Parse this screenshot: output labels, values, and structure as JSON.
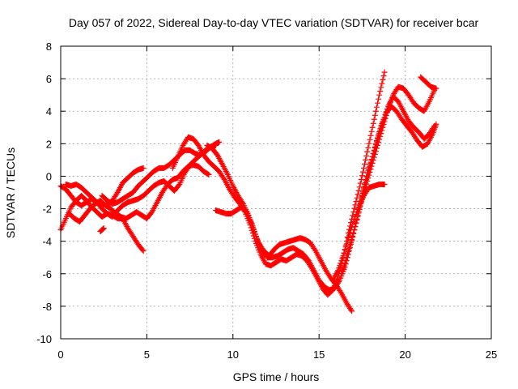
{
  "chart_data": {
    "type": "scatter",
    "title": "Day 057 of 2022, Sidereal Day-to-day VTEC variation (SDTVAR) for receiver bcar",
    "xlabel": "GPS time / hours",
    "ylabel": "SDTVAR / TECUs",
    "xlim": [
      0,
      25
    ],
    "ylim": [
      -10,
      8
    ],
    "xticks": [
      0,
      5,
      10,
      15,
      20,
      25
    ],
    "yticks": [
      -10,
      -8,
      -6,
      -4,
      -2,
      0,
      2,
      4,
      6,
      8
    ],
    "grid": true,
    "marker": "plus",
    "color": "#ff0000",
    "series": [
      {
        "x": [
          0.0,
          0.3,
          0.6,
          0.9,
          1.2,
          1.5,
          1.8,
          2.1,
          2.4,
          2.7,
          3.0,
          3.3,
          3.6,
          3.9,
          4.2,
          4.5,
          4.8
        ],
        "y": [
          -3.3,
          -2.6,
          -1.9,
          -1.5,
          -1.2,
          -1.5,
          -1.9,
          -2.2,
          -2.5,
          -2.3,
          -2.4,
          -2.6,
          -2.6,
          -3.2,
          -3.7,
          -4.2,
          -4.6
        ]
      },
      {
        "x": [
          0.0,
          0.3,
          0.6,
          0.9,
          1.2,
          1.5,
          1.8,
          2.1,
          2.4,
          2.7,
          3.0,
          3.3,
          3.6,
          3.9,
          4.2,
          4.5,
          4.8,
          5.1,
          5.4,
          5.7,
          6.0,
          6.3,
          6.6,
          6.9,
          7.2,
          7.5,
          7.8,
          8.1,
          8.4,
          8.7,
          9.0,
          9.2
        ],
        "y": [
          -0.6,
          -0.8,
          -1.2,
          -1.6,
          -1.8,
          -1.6,
          -1.4,
          -1.6,
          -2.0,
          -2.3,
          -2.5,
          -2.1,
          -1.8,
          -1.6,
          -1.5,
          -1.4,
          -1.2,
          -0.9,
          -0.6,
          -0.4,
          -0.3,
          -0.6,
          -0.9,
          -0.5,
          0.2,
          0.7,
          1.0,
          1.3,
          1.6,
          1.8,
          2.0,
          2.1
        ]
      },
      {
        "x": [
          0.5,
          0.8,
          1.1,
          1.4,
          1.7,
          2.0,
          2.3,
          2.6,
          2.9,
          3.2,
          3.5,
          3.8,
          4.1,
          4.4,
          4.7,
          5.0,
          5.3,
          5.6,
          5.9,
          6.2,
          6.5,
          6.8,
          7.1,
          7.4,
          7.7,
          8.0,
          8.3,
          8.6
        ],
        "y": [
          -2.3,
          -2.6,
          -2.8,
          -2.4,
          -2.0,
          -1.7,
          -1.5,
          -1.8,
          -2.0,
          -2.3,
          -2.5,
          -2.6,
          -2.4,
          -2.2,
          -2.4,
          -2.6,
          -2.2,
          -1.6,
          -1.0,
          -0.5,
          -0.2,
          -0.1,
          0.3,
          0.6,
          0.7,
          0.6,
          0.3,
          0.1
        ]
      },
      {
        "x": [
          0.3,
          0.6,
          0.9,
          1.2,
          1.5,
          1.8,
          2.1,
          2.4,
          2.7,
          3.0,
          3.3,
          3.6,
          3.9,
          4.2,
          4.5,
          4.8
        ],
        "y": [
          -0.5,
          -0.6,
          -0.5,
          -0.7,
          -1.0,
          -1.3,
          -1.6,
          -1.7,
          -1.8,
          -1.5,
          -1.0,
          -0.4,
          -0.1,
          0.2,
          0.4,
          0.5
        ]
      },
      {
        "x": [
          2.4,
          2.7,
          3.0,
          3.3,
          3.6,
          3.9,
          4.2,
          4.5,
          4.8,
          5.1,
          5.4,
          5.7,
          6.0,
          6.3,
          6.6,
          6.9,
          7.2,
          7.5,
          7.8,
          8.1,
          8.4,
          8.7,
          9.0
        ],
        "y": [
          -1.2,
          -1.5,
          -1.7,
          -1.6,
          -1.4,
          -1.2,
          -1.0,
          -0.6,
          -0.3,
          0.0,
          0.3,
          0.5,
          0.5,
          0.7,
          1.0,
          1.3,
          1.6,
          1.6,
          1.4,
          1.3,
          1.5,
          1.8,
          1.9
        ]
      },
      {
        "x": [
          2.3,
          2.5
        ],
        "y": [
          -3.4,
          -3.2
        ]
      },
      {
        "x": [
          6.5,
          6.8,
          7.1,
          7.4,
          7.7,
          8.0,
          8.3,
          8.6,
          8.9,
          9.2,
          9.5,
          9.8,
          10.1,
          10.4,
          10.7,
          11.0,
          11.3,
          11.6,
          11.9,
          12.2,
          12.5,
          12.8,
          13.1,
          13.4,
          13.7,
          14.0,
          14.3,
          14.6,
          14.9,
          15.2,
          15.5,
          15.8,
          16.1,
          16.4,
          16.7,
          17.0,
          17.3,
          17.6,
          17.9,
          18.2,
          18.5,
          18.8
        ],
        "y": [
          0.5,
          1.2,
          1.9,
          2.4,
          2.3,
          1.9,
          1.3,
          0.9,
          0.6,
          0.3,
          -0.2,
          -0.8,
          -1.3,
          -1.7,
          -2.2,
          -3.0,
          -4.0,
          -4.8,
          -5.4,
          -5.5,
          -5.3,
          -5.1,
          -5.2,
          -5.0,
          -4.8,
          -4.9,
          -5.2,
          -5.7,
          -6.3,
          -6.9,
          -7.3,
          -7.0,
          -6.2,
          -5.0,
          -3.5,
          -2.2,
          -0.9,
          0.5,
          2.0,
          3.5,
          5.0,
          6.4
        ]
      },
      {
        "x": [
          8.5,
          8.8,
          9.1,
          9.4,
          9.7,
          10.0,
          10.3,
          10.6,
          10.9,
          11.2,
          11.5,
          11.8,
          12.1,
          12.4,
          12.7,
          13.0,
          13.3,
          13.6,
          13.9,
          14.2,
          14.5,
          14.8,
          15.1,
          15.4,
          15.7,
          16.0,
          16.3,
          16.6,
          16.9
        ],
        "y": [
          1.9,
          1.7,
          1.3,
          0.7,
          0.1,
          -0.6,
          -1.2,
          -1.7,
          -2.4,
          -3.3,
          -4.1,
          -4.6,
          -4.9,
          -4.5,
          -4.2,
          -4.1,
          -4.0,
          -3.9,
          -3.8,
          -3.9,
          -4.1,
          -4.6,
          -5.2,
          -5.8,
          -6.3,
          -6.7,
          -7.2,
          -7.8,
          -8.3
        ]
      },
      {
        "x": [
          9.0,
          9.3,
          9.6,
          9.9,
          10.2,
          10.5,
          10.8,
          11.1,
          11.4,
          11.7,
          12.0,
          12.3,
          12.6,
          12.9,
          13.2,
          13.5,
          13.8,
          14.1,
          14.4,
          14.7,
          15.0,
          15.3,
          15.6,
          15.9,
          16.2,
          16.5,
          16.8,
          17.1,
          17.4,
          17.7,
          18.0,
          18.3,
          18.6,
          18.9,
          19.2,
          19.5,
          19.8,
          20.1,
          20.4,
          20.7,
          21.0,
          21.3,
          21.6,
          21.8
        ],
        "y": [
          -2.1,
          -2.2,
          -2.3,
          -2.3,
          -2.1,
          -1.9,
          -2.2,
          -2.9,
          -3.9,
          -4.6,
          -5.0,
          -5.0,
          -4.9,
          -4.7,
          -4.5,
          -4.4,
          -4.6,
          -4.8,
          -5.2,
          -5.8,
          -6.4,
          -6.8,
          -7.0,
          -6.9,
          -6.4,
          -5.6,
          -4.4,
          -3.1,
          -1.7,
          -0.4,
          0.8,
          2.0,
          3.1,
          3.9,
          4.3,
          4.0,
          3.5,
          3.1,
          2.7,
          2.2,
          1.8,
          2.0,
          2.6,
          3.2
        ]
      },
      {
        "x": [
          15.8,
          16.1,
          16.4,
          16.7,
          17.0,
          17.3,
          17.6,
          17.9,
          18.2,
          18.5,
          18.8
        ],
        "y": [
          -6.4,
          -5.8,
          -4.9,
          -3.8,
          -2.8,
          -1.9,
          -1.2,
          -0.7,
          -0.6,
          -0.5,
          -0.5
        ]
      },
      {
        "x": [
          16.3,
          16.6,
          16.9,
          17.2,
          17.5,
          17.8,
          18.1,
          18.4,
          18.7,
          19.0,
          19.3,
          19.6,
          19.9,
          20.2,
          20.5,
          20.8,
          21.1,
          21.4,
          21.7
        ],
        "y": [
          -6.0,
          -5.0,
          -3.9,
          -2.7,
          -1.4,
          -0.3,
          0.8,
          1.9,
          3.0,
          4.1,
          5.0,
          5.5,
          5.4,
          5.0,
          4.5,
          4.2,
          4.0,
          4.6,
          5.3
        ]
      },
      {
        "x": [
          17.5,
          17.8,
          18.1,
          18.4,
          18.7,
          19.0,
          19.3,
          19.6,
          19.9,
          20.2,
          20.5,
          20.8,
          21.1,
          21.4,
          21.7
        ],
        "y": [
          -1.2,
          0.2,
          1.2,
          2.3,
          3.3,
          4.3,
          4.9,
          4.6,
          4.0,
          3.4,
          3.0,
          2.7,
          2.3,
          2.6,
          3.1
        ]
      },
      {
        "x": [
          20.9,
          21.2,
          21.5,
          21.8
        ],
        "y": [
          6.1,
          5.8,
          5.5,
          5.4
        ]
      }
    ]
  }
}
